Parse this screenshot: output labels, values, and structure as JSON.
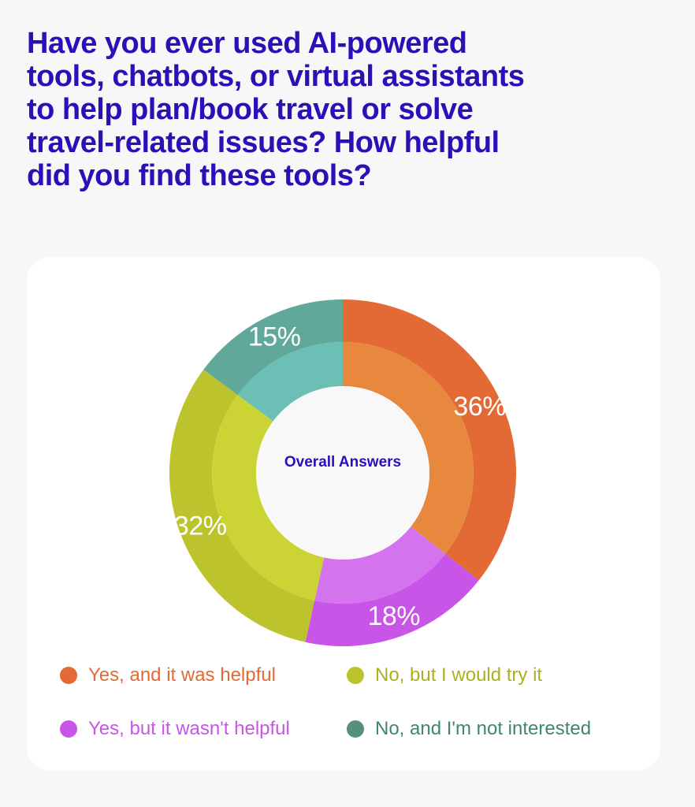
{
  "question": "Have you ever used AI-powered tools, chatbots, or virtual assistants to help plan/book travel or solve travel-related issues? How helpful did you find these tools?",
  "center_label": "Overall Answers",
  "chart_data": {
    "type": "pie",
    "donut": true,
    "title": "Have you ever used AI-powered tools, chatbots, or virtual assistants to help plan/book travel or solve travel-related issues? How helpful did you find these tools?",
    "center_label": "Overall Answers",
    "categories": [
      "Yes, and it was helpful",
      "Yes, but it wasn't helpful",
      "No, but I would try it",
      "No, and I'm not interested"
    ],
    "values": [
      36,
      18,
      32,
      15
    ],
    "value_labels": [
      "36%",
      "18%",
      "32%",
      "15%"
    ],
    "colors": {
      "outer": [
        "#e36a35",
        "#c855e7",
        "#bdc32c",
        "#5fa89a"
      ],
      "inner": [
        "#e8883f",
        "#d473ee",
        "#cbd434",
        "#6bbfb4"
      ],
      "legend_dot": [
        "#e36a35",
        "#c855e7",
        "#bdc32c",
        "#55907f"
      ],
      "legend_text": [
        "#e36a35",
        "#c855e7",
        "#a9b11f",
        "#3f8573"
      ]
    },
    "start_angle": "12 o'clock",
    "direction": "clockwise",
    "legend_position": "bottom"
  }
}
